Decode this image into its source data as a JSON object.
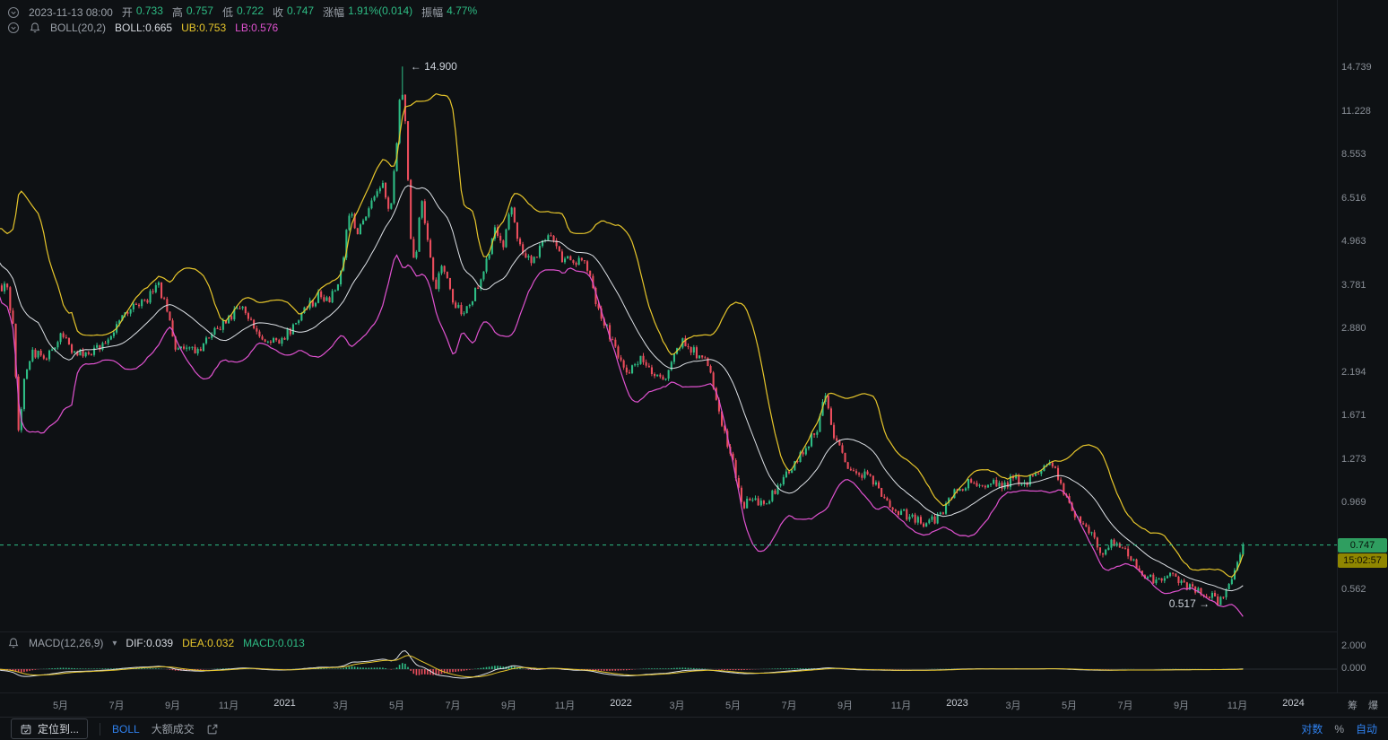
{
  "colors": {
    "up": "#2ebd85",
    "down": "#ea4d5c",
    "boll_ub": "#e7c62b",
    "boll_mb": "#dde1e6",
    "boll_lb": "#e052d0",
    "accent_blue": "#2f80ed",
    "badge_price_bg": "#2f9e60",
    "badge_countdown_bg": "#8f8600",
    "background": "#0e1114"
  },
  "header": {
    "datetime": "2023-11-13 08:00",
    "fields": [
      {
        "label": "开",
        "value": "0.733"
      },
      {
        "label": "高",
        "value": "0.757"
      },
      {
        "label": "低",
        "value": "0.722"
      },
      {
        "label": "收",
        "value": "0.747"
      },
      {
        "label": "涨幅",
        "value": "1.91%(0.014)"
      },
      {
        "label": "振幅",
        "value": "4.77%"
      }
    ],
    "boll": {
      "name": "BOLL(20,2)",
      "mb": "BOLL:0.665",
      "ub": "UB:0.753",
      "lb": "LB:0.576"
    }
  },
  "macd_header": {
    "name": "MACD(12,26,9)",
    "dif": "DIF:0.039",
    "dea": "DEA:0.032",
    "macd": "MACD:0.013"
  },
  "price_axis": {
    "ticks": [
      "14.739",
      "11.228",
      "8.553",
      "6.516",
      "4.963",
      "3.781",
      "2.880",
      "2.194",
      "1.671",
      "1.273",
      "0.969",
      "0.562"
    ],
    "current_price": "0.747",
    "countdown": "15:02:57"
  },
  "macd_axis": {
    "ticks": [
      "2.000",
      "0.000"
    ]
  },
  "time_axis": {
    "labels": [
      {
        "label": "5月",
        "t": 2
      },
      {
        "label": "7月",
        "t": 4
      },
      {
        "label": "9月",
        "t": 6
      },
      {
        "label": "11月",
        "t": 8
      },
      {
        "label": "2021",
        "t": 10,
        "year": true
      },
      {
        "label": "3月",
        "t": 12
      },
      {
        "label": "5月",
        "t": 14
      },
      {
        "label": "7月",
        "t": 16
      },
      {
        "label": "9月",
        "t": 18
      },
      {
        "label": "11月",
        "t": 20
      },
      {
        "label": "2022",
        "t": 22,
        "year": true
      },
      {
        "label": "3月",
        "t": 24
      },
      {
        "label": "5月",
        "t": 26
      },
      {
        "label": "7月",
        "t": 28
      },
      {
        "label": "9月",
        "t": 30
      },
      {
        "label": "11月",
        "t": 32
      },
      {
        "label": "2023",
        "t": 34,
        "year": true
      },
      {
        "label": "3月",
        "t": 36
      },
      {
        "label": "5月",
        "t": 38
      },
      {
        "label": "7月",
        "t": 40
      },
      {
        "label": "9月",
        "t": 42
      },
      {
        "label": "11月",
        "t": 44
      },
      {
        "label": "2024",
        "t": 46,
        "year": true
      }
    ],
    "right_chips": [
      "筹",
      "爆"
    ]
  },
  "toolbar": {
    "locate_label": "定位到...",
    "boll_label": "BOLL",
    "large_trades_label": "大额成交",
    "log_label": "对数",
    "percent_label": "%",
    "auto_label": "自动"
  },
  "chart_data": {
    "type": "candlestick",
    "scale": "log",
    "overlays": [
      "BOLL(20,2)"
    ],
    "indicator": "MACD(12,26,9)",
    "y_top_tick": 14.739,
    "y_tick_ratio": 1.3127,
    "y_ticks": [
      14.739,
      11.228,
      8.553,
      6.516,
      4.963,
      3.781,
      2.88,
      2.194,
      1.671,
      1.273,
      0.969,
      0.562
    ],
    "macd_ticks": [
      2.0,
      0.0
    ],
    "x_unit": "months since 2020-03-01",
    "current": {
      "datetime": "2023-11-13 08:00",
      "open": 0.733,
      "high": 0.757,
      "low": 0.722,
      "close": 0.747,
      "change_pct": 1.91,
      "change_abs": 0.014,
      "amplitude_pct": 4.77
    },
    "boll_values": {
      "mb": 0.665,
      "ub": 0.753,
      "lb": 0.576
    },
    "macd_values": {
      "dif": 0.039,
      "dea": 0.032,
      "macd": 0.013
    },
    "high_annotation": {
      "t": 14.15,
      "price": 14.9,
      "text": "← 14.900"
    },
    "low_annotation": {
      "t": 43.3,
      "price": 0.517,
      "text": "0.517 →"
    },
    "close_path": [
      [
        -0.7,
        4.4
      ],
      [
        -0.5,
        5.1
      ],
      [
        -0.35,
        4.0
      ],
      [
        -0.15,
        3.6
      ],
      [
        0.05,
        3.9
      ],
      [
        0.3,
        2.9
      ],
      [
        0.5,
        1.55
      ],
      [
        0.75,
        2.25
      ],
      [
        1.0,
        2.5
      ],
      [
        1.5,
        2.4
      ],
      [
        2.0,
        2.8
      ],
      [
        2.5,
        2.5
      ],
      [
        3.0,
        2.45
      ],
      [
        3.5,
        2.65
      ],
      [
        4.0,
        2.95
      ],
      [
        4.6,
        3.3
      ],
      [
        5.1,
        3.5
      ],
      [
        5.5,
        3.8
      ],
      [
        5.8,
        3.2
      ],
      [
        6.1,
        2.6
      ],
      [
        6.6,
        2.5
      ],
      [
        7.1,
        2.6
      ],
      [
        7.6,
        2.9
      ],
      [
        8.1,
        3.15
      ],
      [
        8.5,
        3.3
      ],
      [
        8.9,
        2.9
      ],
      [
        9.3,
        2.6
      ],
      [
        9.8,
        2.7
      ],
      [
        10.3,
        2.9
      ],
      [
        10.8,
        3.3
      ],
      [
        11.2,
        3.55
      ],
      [
        11.6,
        3.4
      ],
      [
        12.0,
        4.1
      ],
      [
        12.35,
        6.3
      ],
      [
        12.6,
        5.1
      ],
      [
        12.9,
        6.0
      ],
      [
        13.2,
        6.6
      ],
      [
        13.5,
        7.3
      ],
      [
        13.75,
        5.9
      ],
      [
        14.0,
        9.2
      ],
      [
        14.15,
        14.2
      ],
      [
        14.3,
        10.5
      ],
      [
        14.5,
        5.2
      ],
      [
        14.65,
        4.1
      ],
      [
        14.85,
        6.6
      ],
      [
        15.05,
        5.4
      ],
      [
        15.35,
        3.7
      ],
      [
        15.65,
        4.3
      ],
      [
        15.95,
        3.5
      ],
      [
        16.35,
        3.15
      ],
      [
        16.7,
        3.5
      ],
      [
        17.1,
        4.1
      ],
      [
        17.5,
        5.5
      ],
      [
        17.8,
        4.9
      ],
      [
        18.1,
        6.2
      ],
      [
        18.45,
        4.6
      ],
      [
        18.8,
        4.35
      ],
      [
        19.2,
        4.9
      ],
      [
        19.5,
        5.3
      ],
      [
        19.9,
        4.5
      ],
      [
        20.3,
        4.4
      ],
      [
        20.7,
        4.5
      ],
      [
        21.1,
        3.4
      ],
      [
        21.5,
        2.9
      ],
      [
        21.9,
        2.45
      ],
      [
        22.3,
        2.2
      ],
      [
        22.7,
        2.45
      ],
      [
        23.1,
        2.2
      ],
      [
        23.5,
        2.05
      ],
      [
        23.9,
        2.4
      ],
      [
        24.2,
        2.7
      ],
      [
        24.6,
        2.5
      ],
      [
        25.0,
        2.4
      ],
      [
        25.4,
        1.9
      ],
      [
        25.7,
        1.5
      ],
      [
        26.0,
        1.25
      ],
      [
        26.3,
        0.95
      ],
      [
        26.7,
        1.02
      ],
      [
        27.1,
        0.95
      ],
      [
        27.5,
        1.05
      ],
      [
        27.9,
        1.18
      ],
      [
        28.3,
        1.28
      ],
      [
        28.7,
        1.42
      ],
      [
        29.0,
        1.55
      ],
      [
        29.25,
        1.95
      ],
      [
        29.6,
        1.5
      ],
      [
        30.0,
        1.25
      ],
      [
        30.4,
        1.18
      ],
      [
        30.8,
        1.15
      ],
      [
        31.2,
        1.05
      ],
      [
        31.6,
        0.95
      ],
      [
        32.0,
        0.92
      ],
      [
        32.4,
        0.88
      ],
      [
        32.8,
        0.86
      ],
      [
        33.2,
        0.88
      ],
      [
        33.6,
        0.95
      ],
      [
        34.0,
        1.06
      ],
      [
        34.4,
        1.1
      ],
      [
        34.8,
        1.08
      ],
      [
        35.2,
        1.12
      ],
      [
        35.6,
        1.06
      ],
      [
        36.0,
        1.14
      ],
      [
        36.4,
        1.1
      ],
      [
        36.8,
        1.16
      ],
      [
        37.2,
        1.25
      ],
      [
        37.5,
        1.18
      ],
      [
        37.8,
        1.02
      ],
      [
        38.1,
        0.92
      ],
      [
        38.5,
        0.87
      ],
      [
        38.9,
        0.78
      ],
      [
        39.2,
        0.7
      ],
      [
        39.5,
        0.76
      ],
      [
        39.9,
        0.74
      ],
      [
        40.3,
        0.68
      ],
      [
        40.7,
        0.62
      ],
      [
        41.1,
        0.6
      ],
      [
        41.5,
        0.63
      ],
      [
        41.9,
        0.59
      ],
      [
        42.3,
        0.57
      ],
      [
        42.7,
        0.56
      ],
      [
        43.0,
        0.545
      ],
      [
        43.3,
        0.525
      ],
      [
        43.6,
        0.56
      ],
      [
        43.85,
        0.61
      ],
      [
        44.05,
        0.68
      ],
      [
        44.2,
        0.747
      ]
    ]
  }
}
